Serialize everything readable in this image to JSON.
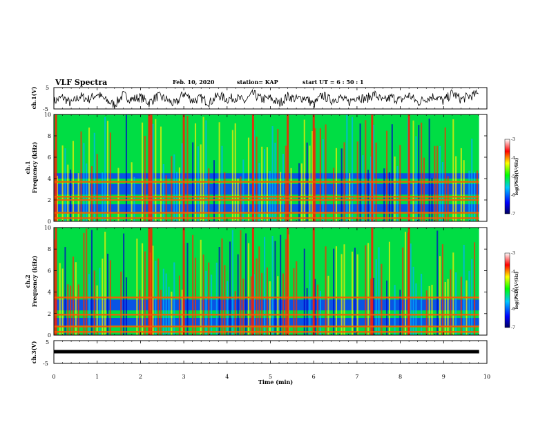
{
  "header": {
    "title": "VLF Spectra",
    "date": "Feb. 10, 2020",
    "station": "station= KAP",
    "start": "start  UT =   6  : 50 : 1"
  },
  "chart_data": [
    {
      "type": "line",
      "panel": "ch1-waveform",
      "ylabel": "ch.1(V)",
      "ylim": [
        -5,
        5
      ],
      "ytick_labels": [
        "5",
        "-5"
      ],
      "x_unit": "min",
      "xlim": [
        0,
        10
      ],
      "series": [
        {
          "x": [
            0,
            0.2,
            0.4,
            0.6,
            0.8,
            1.0,
            1.2,
            1.4,
            1.6,
            1.8,
            2.0,
            2.2,
            2.4,
            2.6,
            2.8,
            3.0,
            3.2,
            3.4,
            3.6,
            3.8,
            4.0,
            4.2,
            4.4,
            4.6,
            4.8,
            5.0,
            5.2,
            5.4,
            5.6,
            5.8,
            6.0,
            6.2,
            6.4,
            6.6,
            6.8,
            7.0,
            7.2,
            7.4,
            7.6,
            7.8,
            8.0,
            8.2,
            8.4,
            8.6,
            8.8,
            9.0,
            9.2,
            9.4,
            9.6,
            9.8
          ],
          "y": [
            -1.5,
            0.5,
            -2.5,
            1.0,
            -0.5,
            2.0,
            -1.0,
            -3.0,
            1.5,
            -0.5,
            0.5,
            -2.0,
            1.0,
            -0.5,
            -3.0,
            2.5,
            -1.0,
            0.0,
            -2.0,
            1.5,
            -0.5,
            0.5,
            -1.5,
            2.0,
            -0.5,
            0.0,
            -2.5,
            1.0,
            -0.5,
            0.5,
            -3.0,
            1.5,
            -1.0,
            0.5,
            -2.0,
            1.0,
            -0.5,
            2.0,
            -1.5,
            0.5,
            -1.0,
            1.5,
            -2.0,
            0.0,
            1.0,
            -1.5,
            2.5,
            -0.5,
            1.0,
            2.0
          ]
        }
      ]
    },
    {
      "type": "heatmap",
      "panel": "ch1-spectrogram",
      "ylabel": "ch.1\nFrequency (kHz)",
      "ylim": [
        0,
        10
      ],
      "ytick_labels": [
        "0",
        "2",
        "4",
        "6",
        "8",
        "10"
      ],
      "xlim": [
        0,
        10
      ],
      "colorbar": {
        "label": "log(PSD)(V²/Hz)",
        "range": [
          -7,
          -3
        ],
        "tick_labels": [
          "-3",
          "-4",
          "-5",
          "-6",
          "-7"
        ],
        "colors": [
          "#000080",
          "#0000ff",
          "#00c8ff",
          "#00ff00",
          "#ffff00",
          "#ff0000",
          "#ffffff"
        ]
      },
      "emission_bands_kHz": [
        0.3,
        0.8,
        2.0,
        2.3,
        3.7
      ],
      "quiet_bands_kHz": [
        [
          2.5,
          3.5
        ],
        [
          4.0,
          4.5
        ],
        [
          0.9,
          1.6
        ]
      ],
      "strong_sferic_times_min": [
        0.05,
        2.2,
        2.25,
        3.0,
        4.6,
        5.4,
        6.0,
        7.35,
        8.2
      ]
    },
    {
      "type": "heatmap",
      "panel": "ch2-spectrogram",
      "ylabel": "ch.2\nFrequency (kHz)",
      "ylim": [
        0,
        10
      ],
      "ytick_labels": [
        "0",
        "2",
        "4",
        "6",
        "8",
        "10"
      ],
      "xlim": [
        0,
        10
      ],
      "colorbar": {
        "label": "log(PSD)(V²/Hz)",
        "range": [
          -7,
          -3
        ],
        "tick_labels": [
          "-3",
          "-4",
          "-5",
          "-6",
          "-7"
        ],
        "colors": [
          "#000080",
          "#0000ff",
          "#00c8ff",
          "#00ff00",
          "#ffff00",
          "#ff0000",
          "#ffffff"
        ]
      },
      "emission_bands_kHz": [
        0.3,
        0.8,
        1.9,
        3.5
      ],
      "quiet_bands_kHz": [
        [
          2.3,
          3.3
        ],
        [
          0.9,
          1.6
        ]
      ],
      "strong_sferic_times_min": [
        0.05,
        2.2,
        2.25,
        3.0,
        4.6,
        5.4,
        6.0,
        7.35,
        8.2
      ]
    },
    {
      "type": "line",
      "panel": "ch3-waveform",
      "ylabel": "ch.3(V)",
      "ylim": [
        -5,
        5
      ],
      "ytick_labels": [
        "5",
        "-5"
      ],
      "xlabel": "Time  (min)",
      "xlim": [
        0,
        10
      ],
      "xtick_labels": [
        "0",
        "1",
        "2",
        "3",
        "4",
        "5",
        "6",
        "7",
        "8",
        "9",
        "10"
      ],
      "series": [
        {
          "x": [
            0,
            9.82
          ],
          "y": [
            0,
            0
          ]
        }
      ]
    }
  ]
}
